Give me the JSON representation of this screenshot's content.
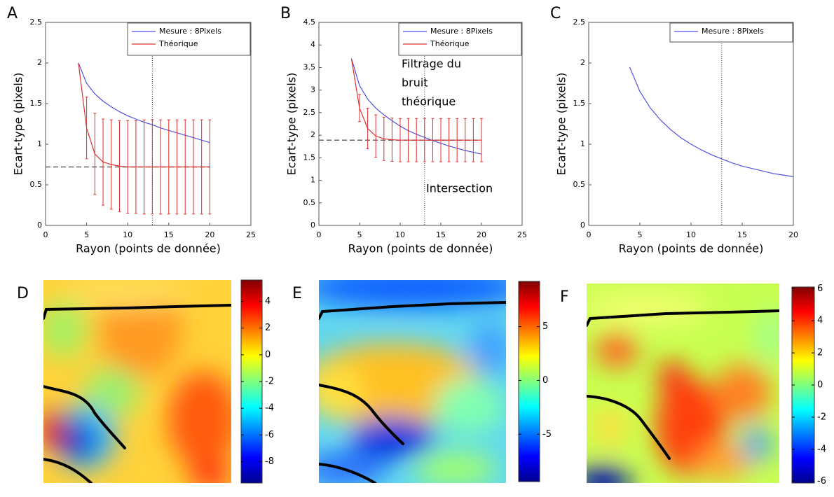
{
  "chart_data": [
    {
      "type": "line",
      "panel": "A",
      "xlabel": "Rayon (points de donnée)",
      "ylabel": "Ecart-type (pixels)",
      "xlim": [
        0,
        25
      ],
      "xticks": [
        0,
        5,
        10,
        15,
        20,
        25
      ],
      "ylim": [
        0,
        2.5
      ],
      "yticks": [
        0,
        0.5,
        1,
        1.5,
        2,
        2.5
      ],
      "x": [
        4,
        5,
        6,
        7,
        8,
        9,
        10,
        11,
        12,
        13,
        14,
        15,
        16,
        17,
        18,
        19,
        20
      ],
      "series": [
        {
          "name": "Mesure : 8Pixels",
          "color": "#5050e0",
          "values": [
            2.0,
            1.75,
            1.62,
            1.53,
            1.46,
            1.4,
            1.35,
            1.31,
            1.27,
            1.24,
            1.2,
            1.17,
            1.14,
            1.11,
            1.08,
            1.05,
            1.02
          ]
        },
        {
          "name": "Théorique",
          "color": "#e03030",
          "values": [
            2.0,
            1.2,
            0.88,
            0.78,
            0.75,
            0.73,
            0.72,
            0.72,
            0.72,
            0.72,
            0.72,
            0.72,
            0.72,
            0.72,
            0.72,
            0.72,
            0.72
          ],
          "errors": [
            null,
            0.38,
            0.5,
            0.53,
            0.55,
            0.56,
            0.57,
            0.57,
            0.58,
            0.58,
            0.58,
            0.58,
            0.58,
            0.58,
            0.58,
            0.58,
            0.58
          ]
        }
      ],
      "hline": 0.72,
      "vline": 13,
      "legend": "upper right"
    },
    {
      "type": "line",
      "panel": "B",
      "xlabel": "Rayon (points de donnée)",
      "ylabel": "Ecart-type (pixels)",
      "xlim": [
        0,
        25
      ],
      "xticks": [
        0,
        5,
        10,
        15,
        20,
        25
      ],
      "ylim": [
        0,
        4.5
      ],
      "yticks": [
        0,
        0.5,
        1,
        1.5,
        2,
        2.5,
        3,
        3.5,
        4,
        4.5
      ],
      "x": [
        4,
        5,
        6,
        7,
        8,
        9,
        10,
        11,
        12,
        13,
        14,
        15,
        16,
        17,
        18,
        19,
        20
      ],
      "series": [
        {
          "name": "Mesure : 8Pixels",
          "color": "#5050e0",
          "values": [
            3.7,
            3.1,
            2.8,
            2.6,
            2.45,
            2.32,
            2.2,
            2.1,
            2.02,
            1.95,
            1.88,
            1.82,
            1.76,
            1.71,
            1.66,
            1.62,
            1.58
          ]
        },
        {
          "name": "Théorique",
          "color": "#e03030",
          "values": [
            3.7,
            2.6,
            2.15,
            1.98,
            1.92,
            1.9,
            1.89,
            1.89,
            1.89,
            1.89,
            1.89,
            1.89,
            1.89,
            1.89,
            1.89,
            1.89,
            1.89
          ],
          "errors": [
            null,
            0.3,
            0.45,
            0.47,
            0.48,
            0.48,
            0.48,
            0.48,
            0.48,
            0.48,
            0.48,
            0.48,
            0.48,
            0.48,
            0.48,
            0.48,
            0.48
          ]
        }
      ],
      "hline": 1.89,
      "vline": 13,
      "legend": "upper right",
      "annotation_lines": [
        "Filtrage du",
        "bruit",
        "théorique"
      ],
      "annotation": "Intersection"
    },
    {
      "type": "line",
      "panel": "C",
      "xlabel": "Rayon (points de donnée)",
      "ylabel": "Ecart-type (pixels)",
      "xlim": [
        0,
        20
      ],
      "xticks": [
        0,
        5,
        10,
        15,
        20
      ],
      "ylim": [
        0,
        2.5
      ],
      "yticks": [
        0,
        0.5,
        1,
        1.5,
        2,
        2.5
      ],
      "x": [
        4,
        5,
        6,
        7,
        8,
        9,
        10,
        11,
        12,
        13,
        14,
        15,
        16,
        17,
        18,
        19,
        20
      ],
      "series": [
        {
          "name": "Mesure : 8Pixels",
          "color": "#5050e0",
          "values": [
            1.95,
            1.65,
            1.45,
            1.3,
            1.18,
            1.08,
            1.0,
            0.93,
            0.87,
            0.82,
            0.77,
            0.73,
            0.7,
            0.67,
            0.64,
            0.62,
            0.6
          ]
        }
      ],
      "vline": 13,
      "legend": "upper right"
    },
    {
      "type": "heatmap",
      "panel": "D",
      "clim": [
        -9.6,
        5.6
      ],
      "cticks": [
        4,
        2,
        0,
        -2,
        -4,
        -6,
        -8
      ]
    },
    {
      "type": "heatmap",
      "panel": "E",
      "clim": [
        -9.4,
        9.2
      ],
      "cticks": [
        5,
        0,
        -5
      ]
    },
    {
      "type": "heatmap",
      "panel": "F",
      "clim": [
        -6.1,
        6.1
      ],
      "cticks": [
        6,
        4,
        2,
        0,
        -2,
        -4,
        -6
      ]
    }
  ]
}
